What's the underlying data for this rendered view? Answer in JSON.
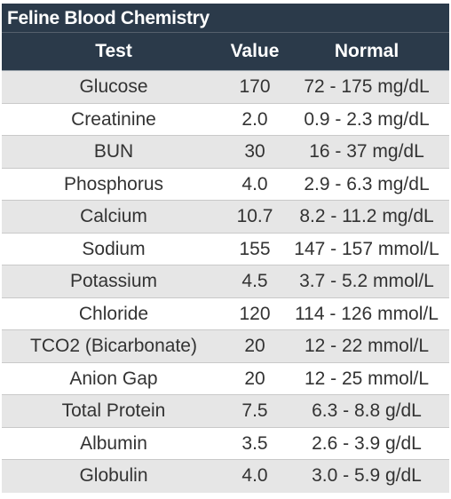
{
  "table": {
    "title": "Feline Blood Chemistry",
    "headers": {
      "test": "Test",
      "value": "Value",
      "normal": "Normal"
    },
    "rows": [
      {
        "test": "Glucose",
        "value": "170",
        "normal": "72 - 175 mg/dL"
      },
      {
        "test": "Creatinine",
        "value": "2.0",
        "normal": "0.9 - 2.3 mg/dL"
      },
      {
        "test": "BUN",
        "value": "30",
        "normal": "16 - 37 mg/dL"
      },
      {
        "test": "Phosphorus",
        "value": "4.0",
        "normal": "2.9 - 6.3 mg/dL"
      },
      {
        "test": "Calcium",
        "value": "10.7",
        "normal": "8.2 - 11.2 mg/dL"
      },
      {
        "test": "Sodium",
        "value": "155",
        "normal": "147 - 157 mmol/L"
      },
      {
        "test": "Potassium",
        "value": "4.5",
        "normal": "3.7 - 5.2 mmol/L"
      },
      {
        "test": "Chloride",
        "value": "120",
        "normal": "114 - 126 mmol/L"
      },
      {
        "test": "TCO2 (Bicarbonate)",
        "value": "20",
        "normal": "12 - 22 mmol/L"
      },
      {
        "test": "Anion Gap",
        "value": "20",
        "normal": "12 - 25 mmol/L"
      },
      {
        "test": "Total Protein",
        "value": "7.5",
        "normal": "6.3 - 8.8 g/dL"
      },
      {
        "test": "Albumin",
        "value": "3.5",
        "normal": "2.6 - 3.9 g/dL"
      },
      {
        "test": "Globulin",
        "value": "4.0",
        "normal": "3.0 - 5.9 g/dL"
      }
    ]
  }
}
